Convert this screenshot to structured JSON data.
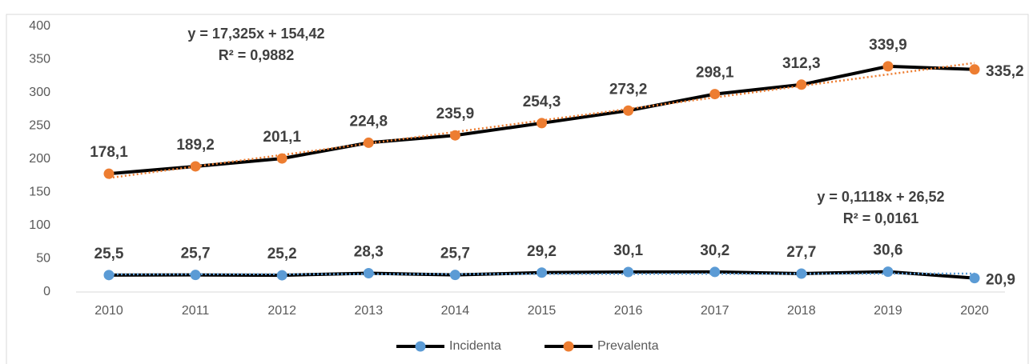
{
  "chart_data": {
    "type": "line",
    "categories": [
      "2010",
      "2011",
      "2012",
      "2013",
      "2014",
      "2015",
      "2016",
      "2017",
      "2018",
      "2019",
      "2020"
    ],
    "series": [
      {
        "name": "Incidenta",
        "color": "#5b9bd5",
        "line_color": "#000000",
        "values": [
          25.5,
          25.7,
          25.2,
          28.3,
          25.7,
          29.2,
          30.1,
          30.2,
          27.7,
          30.6,
          20.9
        ],
        "value_labels": [
          "25,5",
          "25,7",
          "25,2",
          "28,3",
          "25,7",
          "29,2",
          "30,1",
          "30,2",
          "27,7",
          "30,6",
          "20,9"
        ]
      },
      {
        "name": "Prevalenta",
        "color": "#ed7d31",
        "line_color": "#000000",
        "values": [
          178.1,
          189.2,
          201.1,
          224.8,
          235.9,
          254.3,
          273.2,
          298.1,
          312.3,
          339.9,
          335.2
        ],
        "value_labels": [
          "178,1",
          "189,2",
          "201,1",
          "224,8",
          "235,9",
          "254,3",
          "273,2",
          "298,1",
          "312,3",
          "339,9",
          "335,2"
        ]
      }
    ],
    "trendlines": [
      {
        "series": 0,
        "slope": 0.1118,
        "intercept": 26.52,
        "equation": "y = 0,1118x + 26,52",
        "r2": "R² = 0,0161"
      },
      {
        "series": 1,
        "slope": 17.325,
        "intercept": 154.42,
        "equation": "y = 17,325x + 154,42",
        "r2": "R² = 0,9882"
      }
    ],
    "ylim": [
      0,
      400
    ],
    "yticks": [
      0,
      50,
      100,
      150,
      200,
      250,
      300,
      350,
      400
    ],
    "grid": false,
    "legend": "bottom"
  }
}
